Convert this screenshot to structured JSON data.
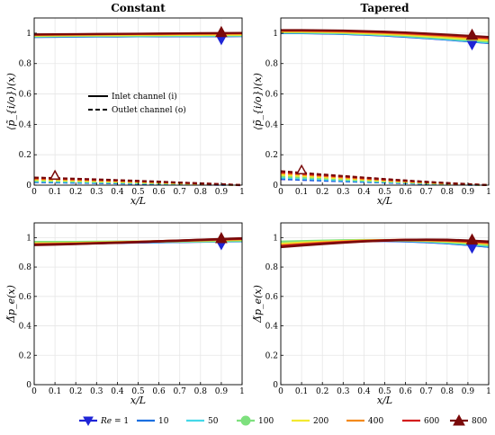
{
  "legend": {
    "re_prefix": "Re",
    "re_eq": " = ",
    "items": [
      {
        "label": "1",
        "color": "#1f25d6",
        "marker": "triangle-down"
      },
      {
        "label": "10",
        "color": "#1b6fe0",
        "marker": "none"
      },
      {
        "label": "50",
        "color": "#45d8e8",
        "marker": "none"
      },
      {
        "label": "100",
        "color": "#7ee07e",
        "marker": "circle"
      },
      {
        "label": "200",
        "color": "#f2e930",
        "marker": "none"
      },
      {
        "label": "400",
        "color": "#f38a1c",
        "marker": "none"
      },
      {
        "label": "600",
        "color": "#d41d1d",
        "marker": "none"
      },
      {
        "label": "800",
        "color": "#7a0a0a",
        "marker": "triangle-up"
      }
    ]
  },
  "line_legend": {
    "inlet": "Inlet channel (i)",
    "outlet": "Outlet channel (o)"
  },
  "chart_data": [
    {
      "type": "line",
      "title": "Constant",
      "xlabel": "x/L",
      "ylabel": "⟨p̃_{i/o}⟩(x)",
      "xlim": [
        0,
        1
      ],
      "ylim": [
        0,
        1.1
      ],
      "xticks": [
        "0",
        "0.1",
        "0.2",
        "0.3",
        "0.4",
        "0.5",
        "0.6",
        "0.7",
        "0.8",
        "0.9",
        "1"
      ],
      "yticks": [
        "0",
        "0.2",
        "0.4",
        "0.6",
        "0.8",
        "1"
      ],
      "grid": true,
      "x": [
        0,
        0.1,
        0.2,
        0.3,
        0.4,
        0.5,
        0.6,
        0.7,
        0.8,
        0.9,
        1.0
      ],
      "series": [
        {
          "name": "1",
          "color": "#1f25d6",
          "inlet": [
            0.975,
            0.976,
            0.977,
            0.978,
            0.978,
            0.979,
            0.979,
            0.98,
            0.98,
            0.98,
            0.981
          ],
          "outlet": [
            0.02,
            0.018,
            0.016,
            0.014,
            0.012,
            0.01,
            0.008,
            0.006,
            0.004,
            0.002,
            0.0
          ]
        },
        {
          "name": "10",
          "color": "#1b6fe0",
          "inlet": [
            0.976,
            0.977,
            0.978,
            0.979,
            0.979,
            0.98,
            0.98,
            0.981,
            0.981,
            0.981,
            0.982
          ],
          "outlet": [
            0.021,
            0.019,
            0.017,
            0.015,
            0.013,
            0.011,
            0.009,
            0.007,
            0.005,
            0.003,
            0.0
          ]
        },
        {
          "name": "50",
          "color": "#45d8e8",
          "inlet": [
            0.978,
            0.979,
            0.98,
            0.98,
            0.981,
            0.981,
            0.982,
            0.982,
            0.982,
            0.983,
            0.983
          ],
          "outlet": [
            0.025,
            0.023,
            0.021,
            0.018,
            0.016,
            0.013,
            0.011,
            0.008,
            0.005,
            0.003,
            0.0
          ]
        },
        {
          "name": "100",
          "color": "#7ee07e",
          "inlet": [
            0.98,
            0.981,
            0.982,
            0.983,
            0.983,
            0.984,
            0.984,
            0.985,
            0.985,
            0.985,
            0.986
          ],
          "outlet": [
            0.03,
            0.028,
            0.025,
            0.022,
            0.019,
            0.016,
            0.013,
            0.01,
            0.007,
            0.004,
            0.0
          ]
        },
        {
          "name": "200",
          "color": "#f2e930",
          "inlet": [
            0.984,
            0.985,
            0.986,
            0.987,
            0.987,
            0.988,
            0.988,
            0.989,
            0.989,
            0.99,
            0.99
          ],
          "outlet": [
            0.036,
            0.033,
            0.03,
            0.027,
            0.023,
            0.02,
            0.016,
            0.012,
            0.008,
            0.004,
            0.0
          ]
        },
        {
          "name": "400",
          "color": "#f38a1c",
          "inlet": [
            0.988,
            0.989,
            0.99,
            0.991,
            0.992,
            0.993,
            0.993,
            0.994,
            0.995,
            0.995,
            0.996
          ],
          "outlet": [
            0.042,
            0.039,
            0.036,
            0.032,
            0.028,
            0.024,
            0.019,
            0.015,
            0.01,
            0.005,
            0.0
          ]
        },
        {
          "name": "600",
          "color": "#d41d1d",
          "inlet": [
            0.99,
            0.991,
            0.992,
            0.993,
            0.994,
            0.995,
            0.996,
            0.997,
            0.998,
            0.999,
            1.0
          ],
          "outlet": [
            0.046,
            0.043,
            0.039,
            0.035,
            0.031,
            0.026,
            0.021,
            0.016,
            0.011,
            0.006,
            0.0
          ]
        },
        {
          "name": "800",
          "color": "#7a0a0a",
          "inlet": [
            0.992,
            0.993,
            0.994,
            0.995,
            0.996,
            0.997,
            0.998,
            0.999,
            1.0,
            1.001,
            1.002
          ],
          "outlet": [
            0.05,
            0.046,
            0.042,
            0.038,
            0.033,
            0.028,
            0.023,
            0.017,
            0.012,
            0.006,
            0.0
          ]
        }
      ],
      "markers": {
        "inlet_x": 0.9,
        "outlet_x": 0.1
      }
    },
    {
      "type": "line",
      "title": "Tapered",
      "xlabel": "x/L",
      "ylabel": "⟨p̃_{i/o}⟩(x)",
      "xlim": [
        0,
        1
      ],
      "ylim": [
        0,
        1.1
      ],
      "xticks": [
        "0",
        "0.1",
        "0.2",
        "0.3",
        "0.4",
        "0.5",
        "0.6",
        "0.7",
        "0.8",
        "0.9",
        "1"
      ],
      "yticks": [
        "0",
        "0.2",
        "0.4",
        "0.6",
        "0.8",
        "1"
      ],
      "grid": true,
      "x": [
        0,
        0.1,
        0.2,
        0.3,
        0.4,
        0.5,
        0.6,
        0.7,
        0.8,
        0.9,
        1.0
      ],
      "series": [
        {
          "name": "1",
          "color": "#1f25d6",
          "inlet": [
            1.0,
            1.0,
            0.998,
            0.995,
            0.99,
            0.984,
            0.976,
            0.967,
            0.957,
            0.946,
            0.935
          ],
          "outlet": [
            0.04,
            0.035,
            0.03,
            0.026,
            0.021,
            0.017,
            0.013,
            0.009,
            0.006,
            0.003,
            0.0
          ]
        },
        {
          "name": "10",
          "color": "#1b6fe0",
          "inlet": [
            1.001,
            1.001,
            0.999,
            0.996,
            0.991,
            0.985,
            0.977,
            0.968,
            0.958,
            0.947,
            0.936
          ],
          "outlet": [
            0.042,
            0.037,
            0.032,
            0.027,
            0.022,
            0.018,
            0.014,
            0.01,
            0.006,
            0.003,
            0.0
          ]
        },
        {
          "name": "50",
          "color": "#45d8e8",
          "inlet": [
            1.003,
            1.003,
            1.001,
            0.998,
            0.993,
            0.987,
            0.979,
            0.97,
            0.96,
            0.95,
            0.939
          ],
          "outlet": [
            0.05,
            0.044,
            0.038,
            0.032,
            0.026,
            0.021,
            0.016,
            0.011,
            0.007,
            0.003,
            0.0
          ]
        },
        {
          "name": "100",
          "color": "#7ee07e",
          "inlet": [
            1.006,
            1.006,
            1.004,
            1.001,
            0.996,
            0.99,
            0.983,
            0.974,
            0.965,
            0.955,
            0.944
          ],
          "outlet": [
            0.058,
            0.051,
            0.044,
            0.037,
            0.031,
            0.025,
            0.019,
            0.013,
            0.008,
            0.004,
            0.0
          ]
        },
        {
          "name": "200",
          "color": "#f2e930",
          "inlet": [
            1.01,
            1.01,
            1.008,
            1.005,
            1.0,
            0.995,
            0.988,
            0.98,
            0.971,
            0.962,
            0.952
          ],
          "outlet": [
            0.068,
            0.06,
            0.052,
            0.044,
            0.036,
            0.029,
            0.022,
            0.016,
            0.01,
            0.005,
            0.0
          ]
        },
        {
          "name": "400",
          "color": "#f38a1c",
          "inlet": [
            1.014,
            1.014,
            1.012,
            1.01,
            1.006,
            1.001,
            0.995,
            0.988,
            0.98,
            0.971,
            0.962
          ],
          "outlet": [
            0.078,
            0.069,
            0.06,
            0.051,
            0.042,
            0.034,
            0.026,
            0.019,
            0.012,
            0.006,
            0.0
          ]
        },
        {
          "name": "600",
          "color": "#d41d1d",
          "inlet": [
            1.017,
            1.017,
            1.016,
            1.014,
            1.01,
            1.006,
            1.0,
            0.993,
            0.986,
            0.977,
            0.968
          ],
          "outlet": [
            0.085,
            0.075,
            0.065,
            0.056,
            0.046,
            0.037,
            0.028,
            0.02,
            0.013,
            0.006,
            0.0
          ]
        },
        {
          "name": "800",
          "color": "#7a0a0a",
          "inlet": [
            1.02,
            1.02,
            1.019,
            1.017,
            1.014,
            1.01,
            1.005,
            0.998,
            0.991,
            0.983,
            0.975
          ],
          "outlet": [
            0.092,
            0.081,
            0.07,
            0.06,
            0.05,
            0.04,
            0.031,
            0.022,
            0.014,
            0.007,
            0.0
          ]
        }
      ],
      "markers": {
        "inlet_x": 0.92,
        "outlet_x": 0.1
      }
    },
    {
      "type": "line",
      "title": "",
      "xlabel": "x/L",
      "ylabel": "Δ̃p_e(x)",
      "xlim": [
        0,
        1
      ],
      "ylim": [
        0,
        1.1
      ],
      "xticks": [
        "0",
        "0.1",
        "0.2",
        "0.3",
        "0.4",
        "0.5",
        "0.6",
        "0.7",
        "0.8",
        "0.9",
        "1"
      ],
      "yticks": [
        "0",
        "0.2",
        "0.4",
        "0.6",
        "0.8",
        "1"
      ],
      "grid": true,
      "x": [
        0,
        0.1,
        0.2,
        0.3,
        0.4,
        0.5,
        0.6,
        0.7,
        0.8,
        0.9,
        1.0
      ],
      "series": [
        {
          "name": "1",
          "color": "#1f25d6",
          "values": [
            0.955,
            0.958,
            0.961,
            0.963,
            0.965,
            0.967,
            0.969,
            0.971,
            0.973,
            0.975,
            0.976
          ]
        },
        {
          "name": "10",
          "color": "#1b6fe0",
          "values": [
            0.956,
            0.959,
            0.962,
            0.964,
            0.966,
            0.968,
            0.97,
            0.972,
            0.974,
            0.976,
            0.977
          ]
        },
        {
          "name": "50",
          "color": "#45d8e8",
          "values": [
            0.965,
            0.966,
            0.967,
            0.968,
            0.969,
            0.97,
            0.971,
            0.973,
            0.974,
            0.976,
            0.977
          ]
        },
        {
          "name": "100",
          "color": "#7ee07e",
          "values": [
            0.97,
            0.97,
            0.97,
            0.971,
            0.972,
            0.973,
            0.974,
            0.975,
            0.976,
            0.978,
            0.98
          ]
        },
        {
          "name": "200",
          "color": "#f2e930",
          "values": [
            0.96,
            0.961,
            0.963,
            0.966,
            0.969,
            0.972,
            0.975,
            0.978,
            0.981,
            0.984,
            0.987
          ]
        },
        {
          "name": "400",
          "color": "#f38a1c",
          "values": [
            0.955,
            0.957,
            0.96,
            0.963,
            0.967,
            0.971,
            0.975,
            0.979,
            0.983,
            0.987,
            0.99
          ]
        },
        {
          "name": "600",
          "color": "#d41d1d",
          "values": [
            0.952,
            0.955,
            0.958,
            0.962,
            0.966,
            0.97,
            0.975,
            0.979,
            0.984,
            0.988,
            0.992
          ]
        },
        {
          "name": "800",
          "color": "#7a0a0a",
          "values": [
            0.95,
            0.953,
            0.957,
            0.961,
            0.965,
            0.97,
            0.975,
            0.98,
            0.985,
            0.99,
            0.995
          ]
        }
      ],
      "markers": {
        "x": 0.9
      }
    },
    {
      "type": "line",
      "title": "",
      "xlabel": "x/L",
      "ylabel": "Δ̃p_e(x)",
      "xlim": [
        0,
        1
      ],
      "ylim": [
        0,
        1.1
      ],
      "xticks": [
        "0",
        "0.1",
        "0.2",
        "0.3",
        "0.4",
        "0.5",
        "0.6",
        "0.7",
        "0.8",
        "0.9",
        "1"
      ],
      "yticks": [
        "0",
        "0.2",
        "0.4",
        "0.6",
        "0.8",
        "1"
      ],
      "grid": true,
      "x": [
        0,
        0.1,
        0.2,
        0.3,
        0.4,
        0.5,
        0.6,
        0.7,
        0.8,
        0.9,
        1.0
      ],
      "series": [
        {
          "name": "1",
          "color": "#1f25d6",
          "values": [
            0.962,
            0.967,
            0.972,
            0.976,
            0.978,
            0.978,
            0.975,
            0.97,
            0.962,
            0.951,
            0.938
          ]
        },
        {
          "name": "10",
          "color": "#1b6fe0",
          "values": [
            0.963,
            0.968,
            0.973,
            0.977,
            0.979,
            0.979,
            0.976,
            0.971,
            0.963,
            0.952,
            0.939
          ]
        },
        {
          "name": "50",
          "color": "#45d8e8",
          "values": [
            0.968,
            0.972,
            0.976,
            0.979,
            0.981,
            0.981,
            0.979,
            0.974,
            0.966,
            0.956,
            0.944
          ]
        },
        {
          "name": "100",
          "color": "#7ee07e",
          "values": [
            0.972,
            0.975,
            0.978,
            0.981,
            0.983,
            0.983,
            0.981,
            0.977,
            0.97,
            0.96,
            0.949
          ]
        },
        {
          "name": "200",
          "color": "#f2e930",
          "values": [
            0.958,
            0.965,
            0.971,
            0.976,
            0.98,
            0.982,
            0.982,
            0.98,
            0.975,
            0.967,
            0.957
          ]
        },
        {
          "name": "400",
          "color": "#f38a1c",
          "values": [
            0.948,
            0.957,
            0.965,
            0.972,
            0.978,
            0.982,
            0.984,
            0.983,
            0.979,
            0.972,
            0.963
          ]
        },
        {
          "name": "600",
          "color": "#d41d1d",
          "values": [
            0.942,
            0.952,
            0.961,
            0.969,
            0.976,
            0.981,
            0.984,
            0.985,
            0.982,
            0.976,
            0.968
          ]
        },
        {
          "name": "800",
          "color": "#7a0a0a",
          "values": [
            0.936,
            0.947,
            0.957,
            0.966,
            0.974,
            0.98,
            0.984,
            0.986,
            0.985,
            0.98,
            0.973
          ]
        }
      ],
      "markers": {
        "x": 0.92
      }
    }
  ]
}
